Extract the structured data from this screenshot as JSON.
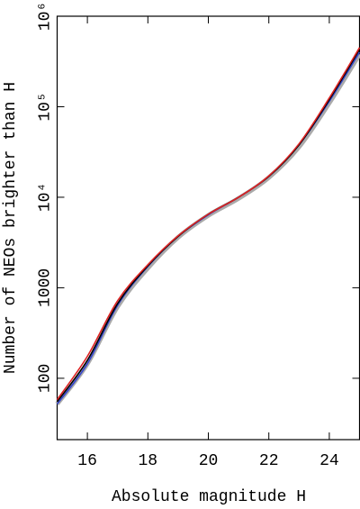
{
  "chart_data": {
    "type": "line",
    "xlabel": "Absolute magnitude H",
    "ylabel": "Number of NEOs brighter than H",
    "log_y": true,
    "x": [
      15,
      16,
      17,
      18,
      19,
      20,
      21,
      22,
      23,
      24,
      25
    ],
    "series": [
      {
        "color": "#aaaaaa",
        "values": [
          52,
          145,
          620,
          1650,
          3600,
          6300,
          9700,
          16500,
          36000,
          110000,
          380000
        ]
      },
      {
        "color": "#3344cc",
        "values": [
          52,
          145,
          640,
          1720,
          3700,
          6400,
          10000,
          17000,
          38000,
          115000,
          400000
        ]
      },
      {
        "color": "#000000",
        "values": [
          55,
          158,
          670,
          1750,
          3700,
          6500,
          10000,
          17000,
          38000,
          120000,
          430000
        ]
      },
      {
        "color": "#dd2222",
        "values": [
          58,
          175,
          720,
          1800,
          3750,
          6500,
          10000,
          17200,
          39000,
          125000,
          450000
        ]
      }
    ],
    "xlim": [
      15,
      25
    ],
    "xticks": [
      16,
      18,
      20,
      22,
      24
    ],
    "ylim": [
      21,
      1000000
    ],
    "yticks": [
      100,
      1000,
      {
        "value": 10000,
        "label": "10⁴"
      },
      {
        "value": 100000,
        "label": "10⁵"
      },
      {
        "value": 1000000,
        "label": "10⁶"
      }
    ]
  }
}
